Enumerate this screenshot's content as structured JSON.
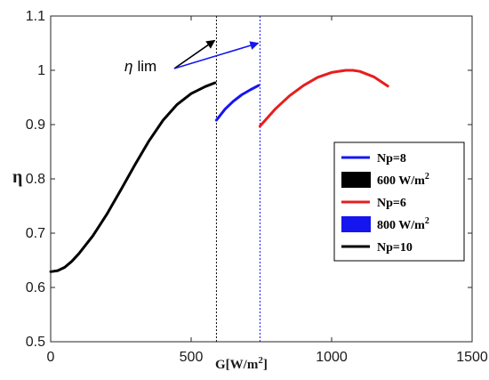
{
  "chart_data": {
    "type": "line",
    "xlabel": "G[W/m",
    "xlabel_sup": "2",
    "xlabel_end": "]",
    "ylabel": "η",
    "xlim": [
      0,
      1500
    ],
    "ylim": [
      0.5,
      1.1
    ],
    "xticks": [
      "0",
      "500",
      "1000",
      "1500"
    ],
    "yticks": [
      "0.5",
      "0.6",
      "0.7",
      "0.8",
      "0.9",
      "1",
      "1.1"
    ],
    "grid": false,
    "legend_position": "right",
    "series": [
      {
        "name": "Np=8",
        "color": "#1515f0",
        "x": [
          590,
          620,
          650,
          680,
          710,
          740
        ],
        "y": [
          0.908,
          0.928,
          0.943,
          0.955,
          0.964,
          0.972
        ]
      },
      {
        "name": "Np=6",
        "color": "#e81d1d",
        "x": [
          745,
          800,
          850,
          900,
          950,
          1000,
          1050,
          1075,
          1100,
          1150,
          1200
        ],
        "y": [
          0.897,
          0.929,
          0.953,
          0.972,
          0.987,
          0.996,
          1.0,
          1.0,
          0.998,
          0.988,
          0.971
        ]
      },
      {
        "name": "Np=10",
        "color": "#000000",
        "x": [
          0,
          25,
          50,
          75,
          100,
          150,
          200,
          250,
          300,
          350,
          400,
          450,
          500,
          550,
          585
        ],
        "y": [
          0.629,
          0.631,
          0.637,
          0.648,
          0.662,
          0.695,
          0.735,
          0.78,
          0.826,
          0.87,
          0.908,
          0.937,
          0.957,
          0.97,
          0.977
        ]
      }
    ],
    "legend": [
      {
        "label": "Np=8",
        "kind": "line",
        "color": "#1515f0"
      },
      {
        "label": "600 W/m",
        "sup": "2",
        "kind": "patch",
        "color": "#000000"
      },
      {
        "label": "Np=6",
        "kind": "line",
        "color": "#e81d1d"
      },
      {
        "label": "800 W/m",
        "sup": "2",
        "kind": "patch",
        "color": "#1515f0"
      },
      {
        "label": "Np=10",
        "kind": "line",
        "color": "#000000"
      }
    ],
    "vlines": [
      {
        "x": 590,
        "color": "#000000"
      },
      {
        "x": 745,
        "color": "#1515f0"
      }
    ],
    "annotation": {
      "symbol": "η",
      "text": "lim",
      "arrow_tips": [
        {
          "x": 590,
          "y": 1.055,
          "color": "#000000"
        },
        {
          "x": 745,
          "y": 1.05,
          "color": "#1515f0"
        }
      ]
    }
  }
}
